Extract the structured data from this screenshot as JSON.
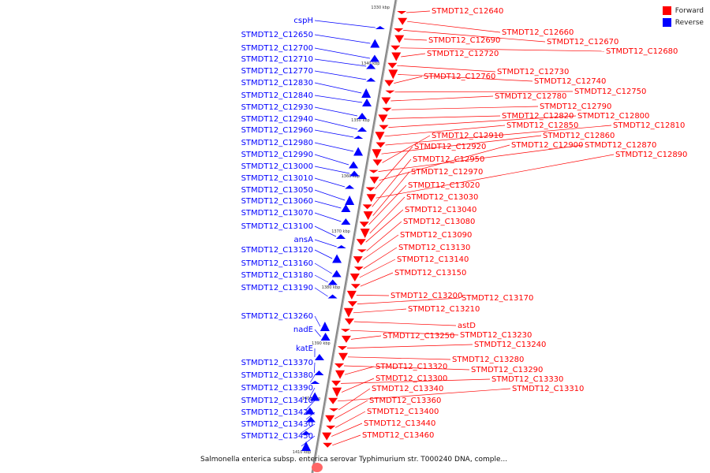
{
  "legend": {
    "forward_label": "Forward",
    "reverse_label": "Reverse",
    "forward_color": "#ff0000",
    "reverse_color": "#0000ff"
  },
  "caption": "Salmonella enterica subsp. enterica serovar Typhimurium str. T000240 DNA, comple...",
  "ticks": [
    "1330 kbp",
    "1340 kbp",
    "1350 kbp",
    "1360 kbp",
    "1370 kbp",
    "1380 kbp",
    "1390 kbp",
    "1400 kbp",
    "1410 kbp"
  ],
  "reverse_genes": [
    "cspH",
    "STMDT12_C12650",
    "STMDT12_C12700",
    "STMDT12_C12710",
    "STMDT12_C12770",
    "STMDT12_C12830",
    "STMDT12_C12840",
    "STMDT12_C12930",
    "STMDT12_C12940",
    "STMDT12_C12960",
    "STMDT12_C12980",
    "STMDT12_C12990",
    "STMDT12_C13000",
    "STMDT12_C13010",
    "STMDT12_C13050",
    "STMDT12_C13060",
    "STMDT12_C13070",
    "STMDT12_C13100",
    "ansA",
    "STMDT12_C13120",
    "STMDT12_C13160",
    "STMDT12_C13180",
    "STMDT12_C13190",
    "STMDT12_C13260",
    "nadE",
    "katE",
    "STMDT12_C13370",
    "STMDT12_C13380",
    "STMDT12_C13390",
    "STMDT12_C13410",
    "STMDT12_C13420",
    "STMDT12_C13430",
    "STMDT12_C13450"
  ],
  "forward_genes": [
    "STMDT12_C12640",
    "STMDT12_C12660",
    "STMDT12_C12670",
    "STMDT12_C12690",
    "STMDT12_C12680",
    "STMDT12_C12720",
    "STMDT12_C12730",
    "STMDT12_C12740",
    "STMDT12_C12760",
    "STMDT12_C12750",
    "STMDT12_C12780",
    "STMDT12_C12790",
    "STMDT12_C12820",
    "STMDT12_C12800",
    "STMDT12_C12850",
    "STMDT12_C12810",
    "STMDT12_C12860",
    "STMDT12_C12910",
    "STMDT12_C12870",
    "STMDT12_C12900",
    "STMDT12_C12920",
    "STMDT12_C12890",
    "STMDT12_C12950",
    "STMDT12_C12970",
    "STMDT12_C13020",
    "STMDT12_C13030",
    "STMDT12_C13040",
    "STMDT12_C13080",
    "STMDT12_C13090",
    "STMDT12_C13130",
    "STMDT12_C13140",
    "STMDT12_C13150",
    "STMDT12_C13200",
    "STMDT12_C13170",
    "STMDT12_C13210",
    "astD",
    "STMDT12_C13230",
    "STMDT12_C13250",
    "STMDT12_C13240",
    "STMDT12_C13280",
    "STMDT12_C13290",
    "STMDT12_C13320",
    "STMDT12_C13330",
    "STMDT12_C13300",
    "STMDT12_C13310",
    "STMDT12_C13340",
    "STMDT12_C13360",
    "STMDT12_C13400",
    "STMDT12_C13440",
    "STMDT12_C13460"
  ]
}
